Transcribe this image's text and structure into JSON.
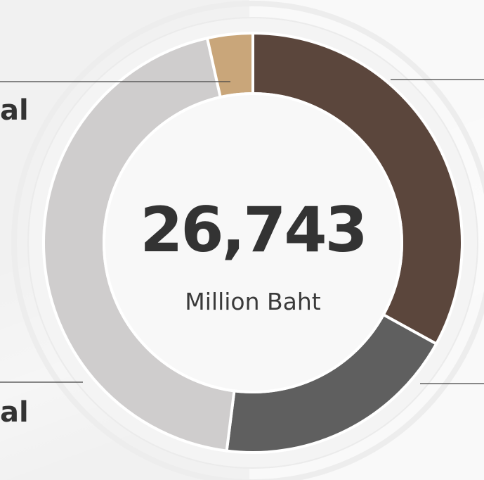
{
  "chart_data": {
    "type": "donut",
    "center_value": "26,743",
    "center_unit": "Million Baht",
    "slices": [
      {
        "label": "",
        "value": 33.0,
        "color": "#5b463c"
      },
      {
        "label": "",
        "value": 19.0,
        "color": "#5f5f5f"
      },
      {
        "label": "",
        "value": 44.5,
        "color": "#cfcdcd"
      },
      {
        "label": "",
        "value": 3.5,
        "color": "#c9a67a"
      }
    ],
    "edge_labels": [
      "al",
      "al"
    ]
  },
  "colors": {
    "background": "#f1f1f1",
    "ring_outline": "#e9e9e9",
    "center_fill": "#f8f8f8",
    "leader_line": "#444444"
  }
}
